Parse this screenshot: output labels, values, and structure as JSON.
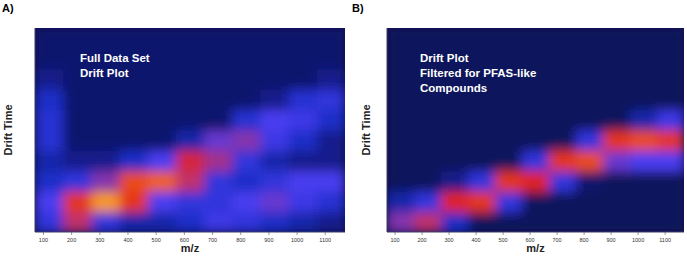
{
  "chart_data": [
    {
      "type": "heatmap",
      "title": "A)",
      "annotations": [
        "Full Data Set",
        "Drift Plot"
      ],
      "x_label": "m/z",
      "y_label": "Drift Time",
      "tick_labels": "x",
      "xlim": [
        70,
        1170
      ],
      "xticks": [
        100,
        200,
        300,
        400,
        500,
        600,
        700,
        800,
        900,
        1000,
        1100
      ],
      "ylim": [
        0,
        100
      ],
      "x_bins": [
        70,
        170,
        270,
        370,
        470,
        570,
        670,
        770,
        870,
        970,
        1070,
        1170
      ],
      "y_bins": [
        0,
        10,
        20,
        30,
        40,
        50,
        60,
        70,
        80,
        90,
        100
      ],
      "color_range": [
        0,
        1
      ],
      "cells": [
        [
          0.3,
          0.6,
          0.3,
          0.15,
          0.15,
          0.2,
          0.35,
          0.3,
          0.2,
          0.15,
          0.1
        ],
        [
          0.4,
          0.8,
          0.95,
          0.8,
          0.4,
          0.3,
          0.3,
          0.4,
          0.45,
          0.35,
          0.25
        ],
        [
          0.2,
          0.3,
          0.5,
          0.85,
          0.9,
          0.6,
          0.3,
          0.2,
          0.3,
          0.4,
          0.4
        ],
        [
          0.15,
          0.1,
          0.1,
          0.2,
          0.4,
          0.7,
          0.55,
          0.3,
          0.15,
          0.1,
          0.1
        ],
        [
          0.25,
          0.05,
          0.05,
          0.05,
          0.05,
          0.15,
          0.45,
          0.5,
          0.35,
          0.2,
          0.1
        ],
        [
          0.25,
          0.05,
          0.05,
          0.05,
          0.05,
          0.05,
          0.05,
          0.25,
          0.4,
          0.35,
          0.2
        ],
        [
          0.2,
          0.05,
          0.05,
          0.05,
          0.05,
          0.05,
          0.05,
          0.05,
          0.1,
          0.25,
          0.3
        ],
        [
          0.1,
          0.05,
          0.05,
          0.05,
          0.05,
          0.05,
          0.05,
          0.05,
          0.05,
          0.05,
          0.1
        ],
        [
          0.05,
          0.05,
          0.05,
          0.05,
          0.05,
          0.05,
          0.05,
          0.05,
          0.05,
          0.05,
          0.05
        ],
        [
          0.05,
          0.05,
          0.05,
          0.05,
          0.05,
          0.05,
          0.05,
          0.05,
          0.05,
          0.05,
          0.05
        ]
      ]
    },
    {
      "type": "heatmap",
      "title": "B)",
      "annotations": [
        "Drift Plot",
        "Filtered for PFAS-like",
        "Compounds"
      ],
      "x_label": "m/z",
      "y_label": "Drift Time",
      "tick_labels": "x",
      "xlim": [
        70,
        1170
      ],
      "xticks": [
        100,
        200,
        300,
        400,
        500,
        600,
        700,
        800,
        900,
        1000,
        1100
      ],
      "ylim": [
        0,
        100
      ],
      "x_bins": [
        70,
        170,
        270,
        370,
        470,
        570,
        670,
        770,
        870,
        970,
        1070,
        1170
      ],
      "y_bins": [
        0,
        10,
        20,
        30,
        40,
        50,
        60,
        70,
        80,
        90,
        100
      ],
      "color_range": [
        0,
        1
      ],
      "cells": [
        [
          0.5,
          0.6,
          0.2,
          0.02,
          0.02,
          0.02,
          0.02,
          0.02,
          0.02,
          0.02,
          0.02
        ],
        [
          0.15,
          0.3,
          0.75,
          0.8,
          0.3,
          0.02,
          0.02,
          0.02,
          0.02,
          0.02,
          0.02
        ],
        [
          0.02,
          0.02,
          0.1,
          0.3,
          0.8,
          0.75,
          0.3,
          0.05,
          0.02,
          0.02,
          0.02
        ],
        [
          0.02,
          0.02,
          0.02,
          0.02,
          0.02,
          0.3,
          0.8,
          0.85,
          0.45,
          0.4,
          0.4
        ],
        [
          0.02,
          0.02,
          0.02,
          0.02,
          0.02,
          0.02,
          0.02,
          0.3,
          0.8,
          0.85,
          0.8
        ],
        [
          0.02,
          0.02,
          0.02,
          0.02,
          0.02,
          0.02,
          0.02,
          0.02,
          0.02,
          0.15,
          0.35
        ],
        [
          0.02,
          0.02,
          0.02,
          0.02,
          0.02,
          0.02,
          0.02,
          0.02,
          0.02,
          0.02,
          0.02
        ],
        [
          0.02,
          0.02,
          0.02,
          0.02,
          0.02,
          0.02,
          0.02,
          0.02,
          0.02,
          0.02,
          0.02
        ],
        [
          0.02,
          0.02,
          0.02,
          0.02,
          0.02,
          0.02,
          0.02,
          0.02,
          0.02,
          0.02,
          0.02
        ],
        [
          0.02,
          0.02,
          0.02,
          0.02,
          0.02,
          0.02,
          0.02,
          0.02,
          0.02,
          0.02,
          0.02
        ]
      ]
    }
  ]
}
